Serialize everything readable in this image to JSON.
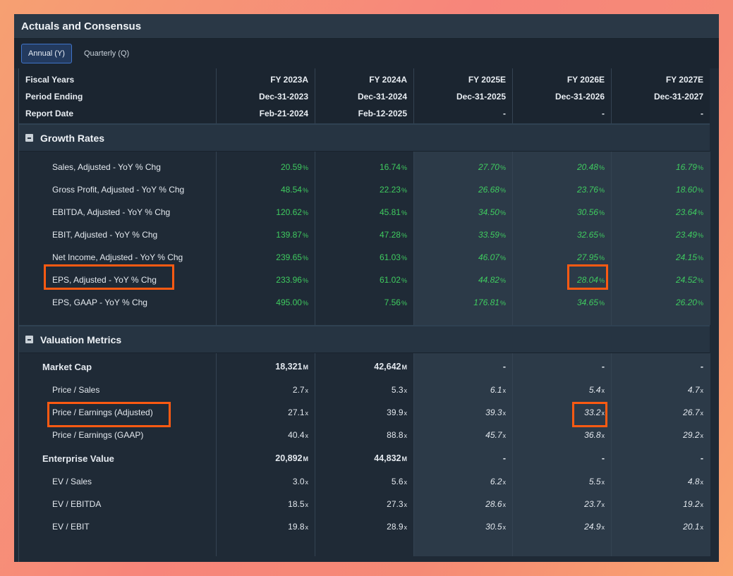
{
  "title": "Actuals and Consensus",
  "tabs": [
    {
      "label": "Annual (Y)",
      "active": true
    },
    {
      "label": "Quarterly (Q)",
      "active": false
    }
  ],
  "header": {
    "rows": [
      {
        "label": "Fiscal Years",
        "values": [
          "FY 2023A",
          "FY 2024A",
          "FY 2025E",
          "FY 2026E",
          "FY 2027E"
        ]
      },
      {
        "label": "Period Ending",
        "values": [
          "Dec-31-2023",
          "Dec-31-2024",
          "Dec-31-2025",
          "Dec-31-2026",
          "Dec-31-2027"
        ]
      },
      {
        "label": "Report Date",
        "values": [
          "Feb-21-2024",
          "Feb-12-2025",
          "-",
          "-",
          "-"
        ]
      }
    ]
  },
  "growth": {
    "title": "Growth Rates",
    "unit": "%",
    "rows": [
      {
        "label": "Sales, Adjusted - YoY % Chg",
        "values": [
          "20.59",
          "16.74",
          "27.70",
          "20.48",
          "16.79"
        ]
      },
      {
        "label": "Gross Profit, Adjusted - YoY % Chg",
        "values": [
          "48.54",
          "22.23",
          "26.68",
          "23.76",
          "18.60"
        ]
      },
      {
        "label": "EBITDA, Adjusted - YoY % Chg",
        "values": [
          "120.62",
          "45.81",
          "34.50",
          "30.56",
          "23.64"
        ]
      },
      {
        "label": "EBIT, Adjusted - YoY % Chg",
        "values": [
          "139.87",
          "47.28",
          "33.59",
          "32.65",
          "23.49"
        ]
      },
      {
        "label": "Net Income, Adjusted - YoY % Chg",
        "values": [
          "239.65",
          "61.03",
          "46.07",
          "27.95",
          "24.15"
        ]
      },
      {
        "label": "EPS, Adjusted - YoY % Chg",
        "values": [
          "233.96",
          "61.02",
          "44.82",
          "28.04",
          "24.52"
        ]
      },
      {
        "label": "EPS, GAAP - YoY % Chg",
        "values": [
          "495.00",
          "7.56",
          "176.81",
          "34.65",
          "26.20"
        ]
      }
    ]
  },
  "valuation": {
    "title": "Valuation Metrics",
    "rows": [
      {
        "label": "Market Cap",
        "bold": true,
        "unit": "M",
        "values": [
          "18,321",
          "42,642",
          "-",
          "-",
          "-"
        ]
      },
      {
        "label": "Price / Sales",
        "unit": "x",
        "values": [
          "2.7",
          "5.3",
          "6.1",
          "5.4",
          "4.7"
        ]
      },
      {
        "label": "Price / Earnings (Adjusted)",
        "unit": "x",
        "values": [
          "27.1",
          "39.9",
          "39.3",
          "33.2",
          "26.7"
        ]
      },
      {
        "label": "Price / Earnings (GAAP)",
        "unit": "x",
        "values": [
          "40.4",
          "88.8",
          "45.7",
          "36.8",
          "29.2"
        ]
      },
      {
        "label": "Enterprise Value",
        "bold": true,
        "unit": "M",
        "values": [
          "20,892",
          "44,832",
          "-",
          "-",
          "-"
        ]
      },
      {
        "label": "EV / Sales",
        "unit": "x",
        "values": [
          "3.0",
          "5.6",
          "6.2",
          "5.5",
          "4.8"
        ]
      },
      {
        "label": "EV / EBITDA",
        "unit": "x",
        "values": [
          "18.5",
          "27.3",
          "28.6",
          "23.7",
          "19.2"
        ]
      },
      {
        "label": "EV / EBIT",
        "unit": "x",
        "values": [
          "19.8",
          "28.9",
          "30.5",
          "24.9",
          "20.1"
        ]
      }
    ]
  },
  "colors": {
    "accent": "#3f74c9",
    "positive": "#3fcb5f",
    "highlight": "#ff5a12"
  }
}
